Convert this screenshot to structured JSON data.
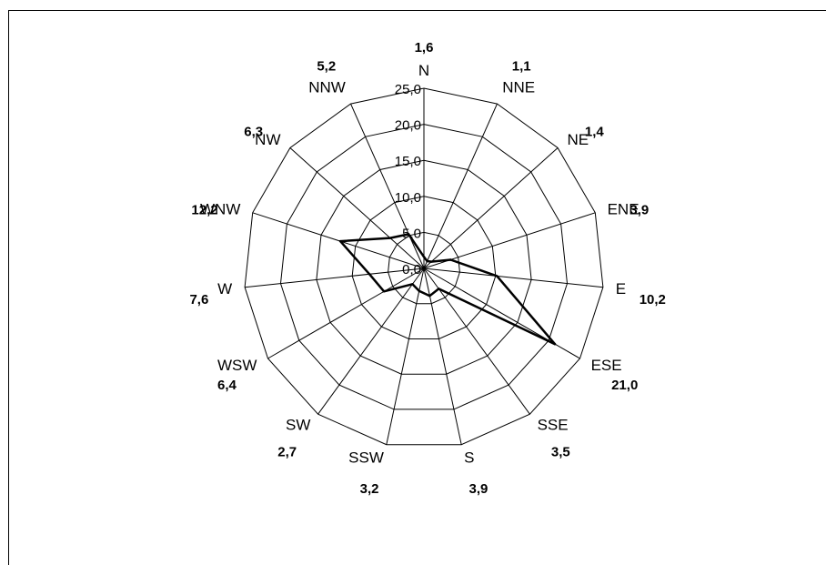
{
  "chart_data": {
    "type": "radar",
    "directions": [
      "N",
      "NNE",
      "NE",
      "ENE",
      "E",
      "ESE",
      "SSE",
      "S",
      "SSW",
      "SW",
      "WSW",
      "W",
      "WNW",
      "NW",
      "NNW"
    ],
    "direction_values": [
      "1,6",
      "1,1",
      "1,4",
      "3,9",
      "10,2",
      "21,0",
      "3,5",
      "3,9",
      "3,2",
      "2,7",
      "6,4",
      "7,6",
      "12,2",
      "6,3",
      "5,2"
    ],
    "values": [
      1.6,
      1.1,
      1.4,
      3.9,
      10.2,
      21.0,
      3.5,
      3.9,
      3.2,
      2.7,
      6.4,
      7.6,
      12.2,
      6.3,
      5.2
    ],
    "rlim": [
      0,
      25
    ],
    "ticks": [
      0,
      5,
      10,
      15,
      20,
      25
    ],
    "tick_labels": [
      "0,0",
      "5,0",
      "10,0",
      "15,0",
      "20,0",
      "25,0"
    ],
    "grid": true,
    "legend": false
  }
}
